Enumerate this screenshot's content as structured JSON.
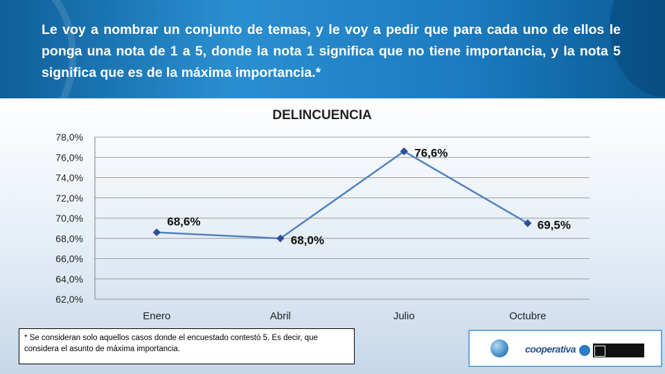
{
  "header": {
    "question": "Le voy a nombrar un conjunto de temas, y le voy a pedir que para cada uno de ellos le ponga una nota de 1 a 5, donde la nota 1 significa que no tiene importancia, y la nota 5 significa que es de la máxima importancia.*"
  },
  "chart_data": {
    "type": "line",
    "title": "DELINCUENCIA",
    "categories": [
      "Enero",
      "Abril",
      "Julio",
      "Octubre"
    ],
    "series": [
      {
        "values": [
          68.6,
          68.0,
          76.6,
          69.5
        ]
      }
    ],
    "data_labels": [
      "68,6%",
      "68,0%",
      "76,6%",
      "69,5%"
    ],
    "yticks": [
      62,
      64,
      66,
      68,
      70,
      72,
      74,
      76,
      78
    ],
    "ytick_labels": [
      "62,0%",
      "64,0%",
      "66,0%",
      "68,0%",
      "70,0%",
      "72,0%",
      "74,0%",
      "76,0%",
      "78,0%"
    ],
    "ylim": [
      62,
      78
    ],
    "grid": true,
    "legend": "none",
    "line_color": "#4f81bd",
    "marker_color": "#2e4f9a"
  },
  "note": {
    "text": "* Se consideran solo aquellos casos donde el encuestado contestó 5. Es decir, que considera el asunto de máxima importancia."
  },
  "logos": {
    "brand": "cooperativa"
  }
}
